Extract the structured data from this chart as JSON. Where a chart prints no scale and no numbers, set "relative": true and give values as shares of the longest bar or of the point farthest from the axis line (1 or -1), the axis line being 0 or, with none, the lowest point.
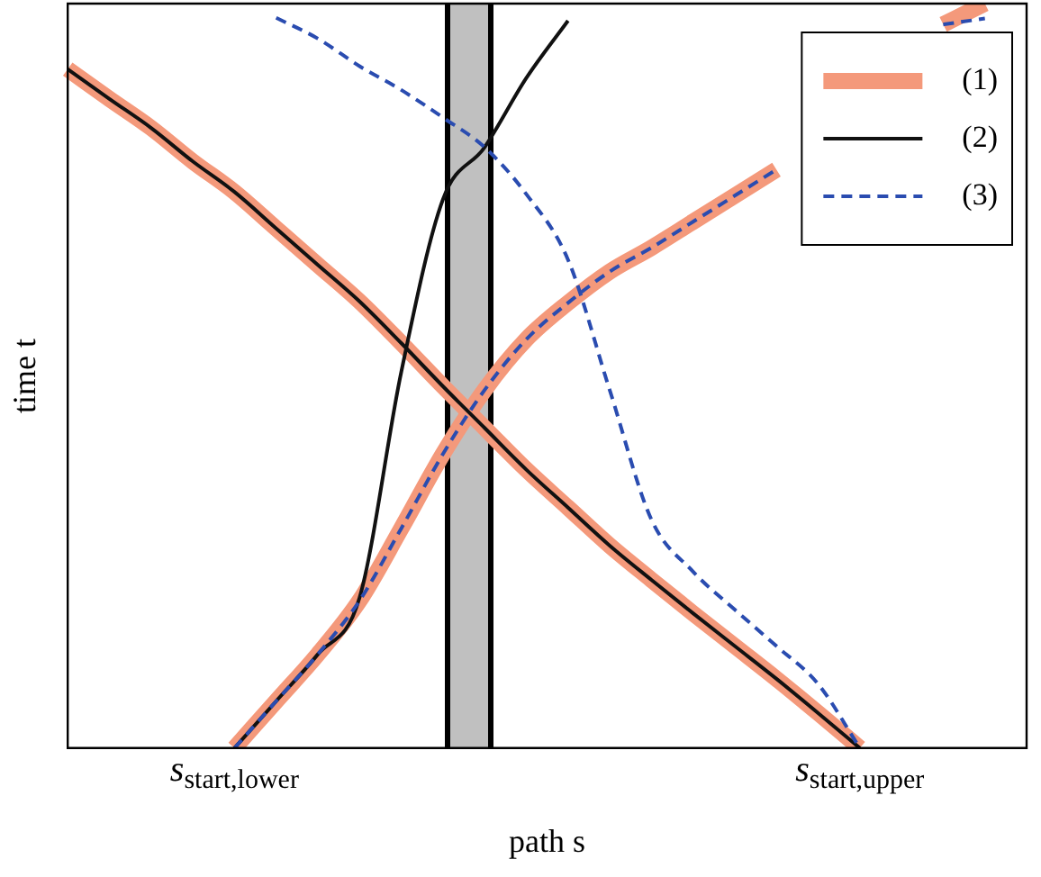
{
  "chart_data": {
    "type": "line",
    "relative": true,
    "xlabel": "path s",
    "ylabel": "time t",
    "categories": [
      null,
      null,
      null,
      null,
      "s$_{start,lower}$",
      null,
      null,
      null,
      null,
      null,
      null,
      null,
      null,
      null,
      null,
      null,
      null,
      null,
      null,
      "s$_{start,upper}$",
      null,
      null,
      null,
      null
    ],
    "legend": "top right",
    "marker": "none",
    "series": [
      {
        "name": "(1)",
        "color": "#f4997b",
        "line_style": "solid",
        "values": [
          0.912,
          0.872,
          0.833,
          0.788,
          0.747,
          0.698,
          0.649,
          0.6,
          0.544,
          0.486,
          0.43,
          0.374,
          0.323,
          0.272,
          0.226,
          0.181,
          0.137,
          0.093,
          0.047,
          0,
          null,
          null,
          null,
          null
        ]
      },
      {
        "color": "#f4997b",
        "line_style": "solid",
        "values": [
          null,
          null,
          null,
          null,
          0,
          0.063,
          0.126,
          0.198,
          0.295,
          0.395,
          0.481,
          0.549,
          0.598,
          0.64,
          0.672,
          0.707,
          0.742,
          0.777,
          null,
          null,
          null,
          0.972,
          1,
          null
        ]
      },
      {
        "name": "(2)",
        "color": "#111111",
        "line_style": "solid",
        "values": [
          0.912,
          0.872,
          0.833,
          0.788,
          0.747,
          0.698,
          0.649,
          0.6,
          0.544,
          0.486,
          0.43,
          0.374,
          0.323,
          0.272,
          0.226,
          0.181,
          0.137,
          0.093,
          0.047,
          0,
          null,
          null,
          null,
          null
        ]
      },
      {
        "color": "#111111",
        "line_style": "solid",
        "values": [
          null,
          null,
          null,
          null,
          0,
          0.063,
          0.126,
          0.202,
          0.505,
          0.737,
          0.807,
          0.9,
          0.977,
          null,
          null,
          null,
          null,
          null,
          null,
          null,
          null,
          null,
          null,
          null
        ]
      },
      {
        "name": "(3)",
        "color": "#2a4cb0",
        "line_style": "dashed",
        "values": [
          null,
          null,
          null,
          null,
          null,
          0.981,
          0.953,
          0.916,
          0.884,
          0.847,
          0.807,
          0.744,
          0.656,
          0.481,
          0.307,
          0.237,
          0.186,
          0.137,
          0.086,
          0,
          null,
          null,
          null,
          null
        ]
      },
      {
        "color": "#2a4cb0",
        "line_style": "dashed",
        "values": [
          null,
          null,
          null,
          null,
          0,
          0.063,
          0.126,
          0.198,
          0.295,
          0.395,
          0.481,
          0.549,
          0.598,
          0.64,
          0.672,
          0.707,
          0.742,
          0.777,
          null,
          null,
          null,
          0.972,
          0.98,
          null
        ]
      }
    ]
  }
}
